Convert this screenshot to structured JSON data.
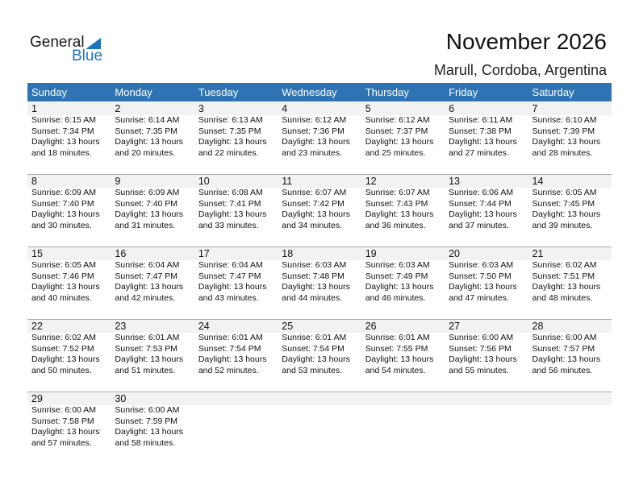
{
  "logo": {
    "general": "General",
    "blue": "Blue"
  },
  "title": "November 2026",
  "subtitle": "Marull, Cordoba, Argentina",
  "colors": {
    "header": "#2E74B5",
    "band": "#F2F2F2",
    "brand": "#1e73be"
  },
  "weekdays": [
    "Sunday",
    "Monday",
    "Tuesday",
    "Wednesday",
    "Thursday",
    "Friday",
    "Saturday"
  ],
  "weeks": [
    [
      {
        "d": "1",
        "rise": "Sunrise: 6:15 AM",
        "set": "Sunset: 7:34 PM",
        "dl": "Daylight: 13 hours",
        "min": "and 18 minutes."
      },
      {
        "d": "2",
        "rise": "Sunrise: 6:14 AM",
        "set": "Sunset: 7:35 PM",
        "dl": "Daylight: 13 hours",
        "min": "and 20 minutes."
      },
      {
        "d": "3",
        "rise": "Sunrise: 6:13 AM",
        "set": "Sunset: 7:35 PM",
        "dl": "Daylight: 13 hours",
        "min": "and 22 minutes."
      },
      {
        "d": "4",
        "rise": "Sunrise: 6:12 AM",
        "set": "Sunset: 7:36 PM",
        "dl": "Daylight: 13 hours",
        "min": "and 23 minutes."
      },
      {
        "d": "5",
        "rise": "Sunrise: 6:12 AM",
        "set": "Sunset: 7:37 PM",
        "dl": "Daylight: 13 hours",
        "min": "and 25 minutes."
      },
      {
        "d": "6",
        "rise": "Sunrise: 6:11 AM",
        "set": "Sunset: 7:38 PM",
        "dl": "Daylight: 13 hours",
        "min": "and 27 minutes."
      },
      {
        "d": "7",
        "rise": "Sunrise: 6:10 AM",
        "set": "Sunset: 7:39 PM",
        "dl": "Daylight: 13 hours",
        "min": "and 28 minutes."
      }
    ],
    [
      {
        "d": "8",
        "rise": "Sunrise: 6:09 AM",
        "set": "Sunset: 7:40 PM",
        "dl": "Daylight: 13 hours",
        "min": "and 30 minutes."
      },
      {
        "d": "9",
        "rise": "Sunrise: 6:09 AM",
        "set": "Sunset: 7:40 PM",
        "dl": "Daylight: 13 hours",
        "min": "and 31 minutes."
      },
      {
        "d": "10",
        "rise": "Sunrise: 6:08 AM",
        "set": "Sunset: 7:41 PM",
        "dl": "Daylight: 13 hours",
        "min": "and 33 minutes."
      },
      {
        "d": "11",
        "rise": "Sunrise: 6:07 AM",
        "set": "Sunset: 7:42 PM",
        "dl": "Daylight: 13 hours",
        "min": "and 34 minutes."
      },
      {
        "d": "12",
        "rise": "Sunrise: 6:07 AM",
        "set": "Sunset: 7:43 PM",
        "dl": "Daylight: 13 hours",
        "min": "and 36 minutes."
      },
      {
        "d": "13",
        "rise": "Sunrise: 6:06 AM",
        "set": "Sunset: 7:44 PM",
        "dl": "Daylight: 13 hours",
        "min": "and 37 minutes."
      },
      {
        "d": "14",
        "rise": "Sunrise: 6:05 AM",
        "set": "Sunset: 7:45 PM",
        "dl": "Daylight: 13 hours",
        "min": "and 39 minutes."
      }
    ],
    [
      {
        "d": "15",
        "rise": "Sunrise: 6:05 AM",
        "set": "Sunset: 7:46 PM",
        "dl": "Daylight: 13 hours",
        "min": "and 40 minutes."
      },
      {
        "d": "16",
        "rise": "Sunrise: 6:04 AM",
        "set": "Sunset: 7:47 PM",
        "dl": "Daylight: 13 hours",
        "min": "and 42 minutes."
      },
      {
        "d": "17",
        "rise": "Sunrise: 6:04 AM",
        "set": "Sunset: 7:47 PM",
        "dl": "Daylight: 13 hours",
        "min": "and 43 minutes."
      },
      {
        "d": "18",
        "rise": "Sunrise: 6:03 AM",
        "set": "Sunset: 7:48 PM",
        "dl": "Daylight: 13 hours",
        "min": "and 44 minutes."
      },
      {
        "d": "19",
        "rise": "Sunrise: 6:03 AM",
        "set": "Sunset: 7:49 PM",
        "dl": "Daylight: 13 hours",
        "min": "and 46 minutes."
      },
      {
        "d": "20",
        "rise": "Sunrise: 6:03 AM",
        "set": "Sunset: 7:50 PM",
        "dl": "Daylight: 13 hours",
        "min": "and 47 minutes."
      },
      {
        "d": "21",
        "rise": "Sunrise: 6:02 AM",
        "set": "Sunset: 7:51 PM",
        "dl": "Daylight: 13 hours",
        "min": "and 48 minutes."
      }
    ],
    [
      {
        "d": "22",
        "rise": "Sunrise: 6:02 AM",
        "set": "Sunset: 7:52 PM",
        "dl": "Daylight: 13 hours",
        "min": "and 50 minutes."
      },
      {
        "d": "23",
        "rise": "Sunrise: 6:01 AM",
        "set": "Sunset: 7:53 PM",
        "dl": "Daylight: 13 hours",
        "min": "and 51 minutes."
      },
      {
        "d": "24",
        "rise": "Sunrise: 6:01 AM",
        "set": "Sunset: 7:54 PM",
        "dl": "Daylight: 13 hours",
        "min": "and 52 minutes."
      },
      {
        "d": "25",
        "rise": "Sunrise: 6:01 AM",
        "set": "Sunset: 7:54 PM",
        "dl": "Daylight: 13 hours",
        "min": "and 53 minutes."
      },
      {
        "d": "26",
        "rise": "Sunrise: 6:01 AM",
        "set": "Sunset: 7:55 PM",
        "dl": "Daylight: 13 hours",
        "min": "and 54 minutes."
      },
      {
        "d": "27",
        "rise": "Sunrise: 6:00 AM",
        "set": "Sunset: 7:56 PM",
        "dl": "Daylight: 13 hours",
        "min": "and 55 minutes."
      },
      {
        "d": "28",
        "rise": "Sunrise: 6:00 AM",
        "set": "Sunset: 7:57 PM",
        "dl": "Daylight: 13 hours",
        "min": "and 56 minutes."
      }
    ],
    [
      {
        "d": "29",
        "rise": "Sunrise: 6:00 AM",
        "set": "Sunset: 7:58 PM",
        "dl": "Daylight: 13 hours",
        "min": "and 57 minutes."
      },
      {
        "d": "30",
        "rise": "Sunrise: 6:00 AM",
        "set": "Sunset: 7:59 PM",
        "dl": "Daylight: 13 hours",
        "min": "and 58 minutes."
      },
      null,
      null,
      null,
      null,
      null
    ]
  ]
}
